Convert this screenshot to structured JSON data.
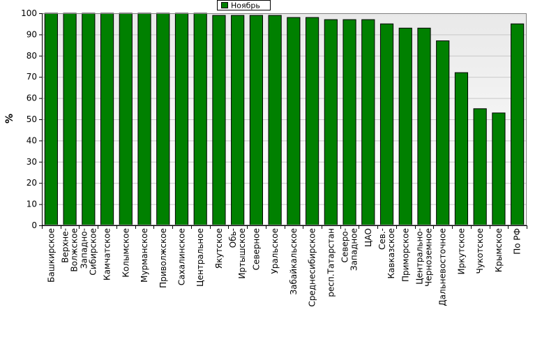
{
  "chart_data": {
    "type": "bar",
    "title": "",
    "xlabel": "",
    "ylabel": "%",
    "ylim": [
      0,
      100
    ],
    "yticks": [
      0,
      10,
      20,
      30,
      40,
      50,
      60,
      70,
      80,
      90,
      100
    ],
    "grid": true,
    "legend_position": "top-center",
    "categories": [
      "Башкирское",
      "Верхне-Волжское",
      "Западно-Сибирское",
      "Камчатское",
      "Колымское",
      "Мурманское",
      "Приволжское",
      "Сахалинское",
      "Центральное",
      "Якутское",
      "Обь-Иртышское",
      "Северное",
      "Уральское",
      "Забайкальское",
      "Среднесибирское",
      "респ.Татарстан",
      "Северо-Западное",
      "ЦАО",
      "Сев.-Кавказское",
      "Приморское",
      "Центрально-Черноземное",
      "Дальневосточное",
      "Иркутское",
      "Чукотское",
      "Крымское",
      "По РФ"
    ],
    "series": [
      {
        "name": "Ноябрь",
        "color": "#008000",
        "values": [
          100,
          100,
          100,
          100,
          100,
          100,
          100,
          100,
          100,
          99,
          99,
          99,
          99,
          98,
          98,
          97,
          97,
          97,
          95,
          93,
          93,
          87,
          72,
          55,
          53,
          95
        ]
      }
    ]
  },
  "colors": {
    "plot_background_top": "#e9e9e9",
    "plot_background_bottom": "#ffffff",
    "bar_fill": "#008000",
    "bar_outline": "#000000"
  }
}
